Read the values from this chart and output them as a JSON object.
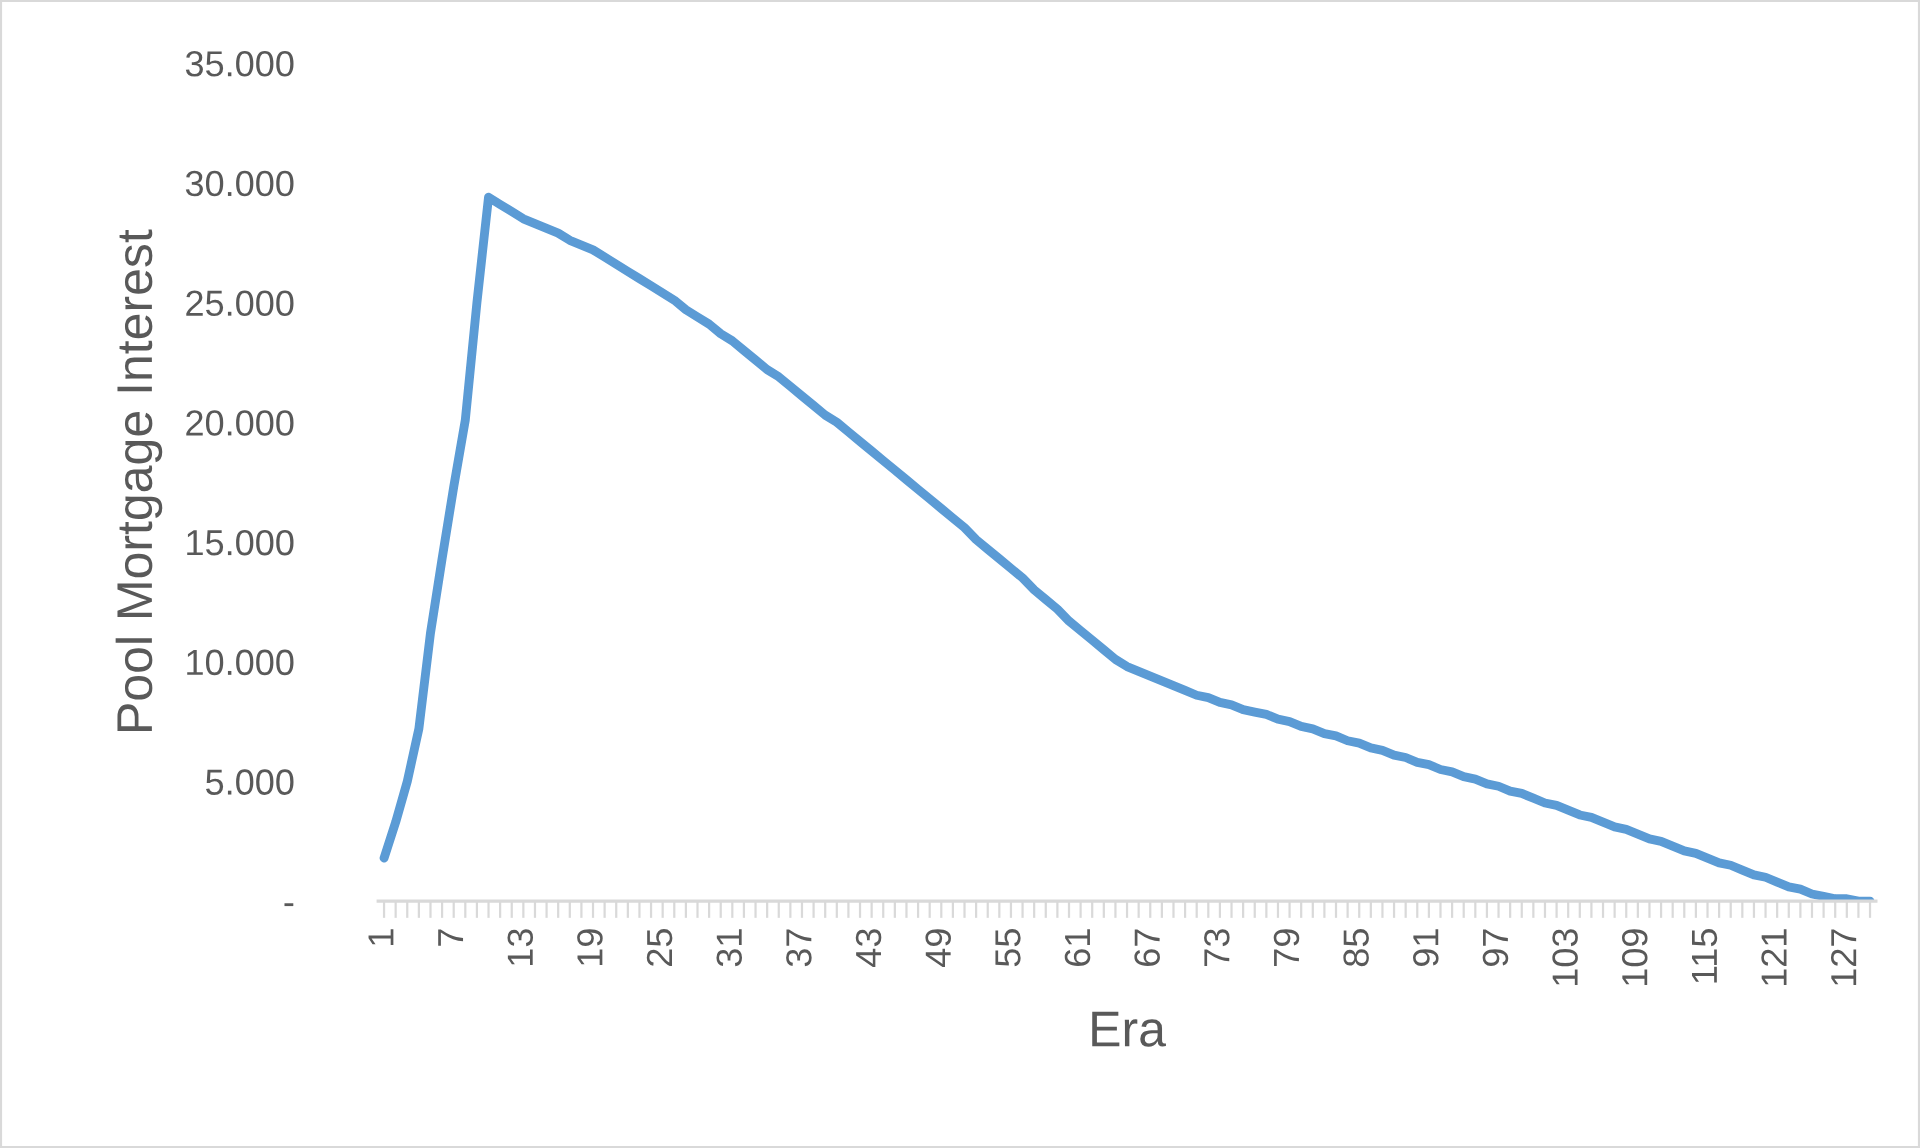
{
  "chart_data": {
    "type": "line",
    "xlabel": "Era",
    "ylabel": "Pool Mortgage Interest",
    "categories": [
      "1",
      null,
      null,
      null,
      null,
      null,
      "7",
      null,
      null,
      null,
      null,
      null,
      "13",
      null,
      null,
      null,
      null,
      null,
      "19",
      null,
      null,
      null,
      null,
      null,
      "25",
      null,
      null,
      null,
      null,
      null,
      "31",
      null,
      null,
      null,
      null,
      null,
      "37",
      null,
      null,
      null,
      null,
      null,
      "43",
      null,
      null,
      null,
      null,
      null,
      "49",
      null,
      null,
      null,
      null,
      null,
      "55",
      null,
      null,
      null,
      null,
      null,
      "61",
      null,
      null,
      null,
      null,
      null,
      "67",
      null,
      null,
      null,
      null,
      null,
      "73",
      null,
      null,
      null,
      null,
      null,
      "79",
      null,
      null,
      null,
      null,
      null,
      "85",
      null,
      null,
      null,
      null,
      null,
      "91",
      null,
      null,
      null,
      null,
      null,
      "97",
      null,
      null,
      null,
      null,
      null,
      "103",
      null,
      null,
      null,
      null,
      null,
      "109",
      null,
      null,
      null,
      null,
      null,
      "115",
      null,
      null,
      null,
      null,
      null,
      "121",
      null,
      null,
      null,
      null,
      null,
      "127",
      null,
      null
    ],
    "series": [
      {
        "color": "#5b9bd5",
        "values": [
          1.8,
          3.3,
          5.0,
          7.2,
          11.2,
          14.3,
          17.3,
          20.1,
          25.0,
          29.4,
          29.1,
          28.8,
          28.5,
          28.3,
          28.1,
          27.9,
          27.6,
          27.4,
          27.2,
          26.9,
          26.6,
          26.3,
          26.0,
          25.7,
          25.4,
          25.1,
          24.7,
          24.4,
          24.1,
          23.7,
          23.4,
          23.0,
          22.6,
          22.2,
          21.9,
          21.5,
          21.1,
          20.7,
          20.3,
          20.0,
          19.6,
          19.2,
          18.8,
          18.4,
          18.0,
          17.6,
          17.2,
          16.8,
          16.4,
          16.0,
          15.6,
          15.1,
          14.7,
          14.3,
          13.9,
          13.5,
          13.0,
          12.6,
          12.2,
          11.7,
          11.3,
          10.9,
          10.5,
          10.1,
          9.8,
          9.6,
          9.4,
          9.2,
          9.0,
          8.8,
          8.6,
          8.5,
          8.3,
          8.2,
          8.0,
          7.9,
          7.8,
          7.6,
          7.5,
          7.3,
          7.2,
          7.0,
          6.9,
          6.7,
          6.6,
          6.4,
          6.3,
          6.1,
          6.0,
          5.8,
          5.7,
          5.5,
          5.4,
          5.2,
          5.1,
          4.9,
          4.8,
          4.6,
          4.5,
          4.3,
          4.1,
          4.0,
          3.8,
          3.6,
          3.5,
          3.3,
          3.1,
          3.0,
          2.8,
          2.6,
          2.5,
          2.3,
          2.1,
          2.0,
          1.8,
          1.6,
          1.5,
          1.3,
          1.1,
          1.0,
          0.8,
          0.6,
          0.5,
          0.3,
          0.2,
          0.1,
          0.1,
          0.0,
          0.0
        ]
      }
    ],
    "ylim": [
      0,
      35
    ],
    "yticks": [
      {
        "value": 0,
        "label": "-"
      },
      {
        "value": 5,
        "label": "5.000"
      },
      {
        "value": 10,
        "label": "10.000"
      },
      {
        "value": 15,
        "label": "15.000"
      },
      {
        "value": 20,
        "label": "20.000"
      },
      {
        "value": 25,
        "label": "25.000"
      },
      {
        "value": 30,
        "label": "30.000"
      },
      {
        "value": 35,
        "label": "35.000"
      }
    ],
    "grid": false,
    "marker": "none",
    "line_style": "solid"
  }
}
